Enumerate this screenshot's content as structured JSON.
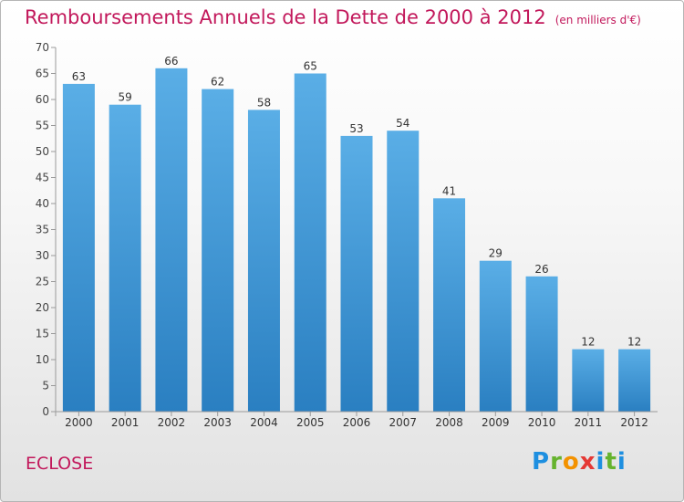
{
  "title": "Remboursements Annuels de la Dette de 2000 à 2012",
  "subtitle": "(en milliers d'€)",
  "commune": "ECLOSE",
  "logo": "Proxiti",
  "colors": {
    "bar": "#3f99d6",
    "title": "#c2185b"
  },
  "chart_data": {
    "type": "bar",
    "title": "Remboursements Annuels de la Dette de 2000 à 2012",
    "subtitle": "(en milliers d'€)",
    "categories": [
      "2000",
      "2001",
      "2002",
      "2003",
      "2004",
      "2005",
      "2006",
      "2007",
      "2008",
      "2009",
      "2010",
      "2011",
      "2012"
    ],
    "values": [
      63,
      59,
      66,
      62,
      58,
      65,
      53,
      54,
      41,
      29,
      26,
      12,
      12
    ],
    "xlabel": "",
    "ylabel": "",
    "ylim": [
      0,
      70
    ],
    "yticks": [
      0,
      5,
      10,
      15,
      20,
      25,
      30,
      35,
      40,
      45,
      50,
      55,
      60,
      65,
      70
    ],
    "grid": false,
    "legend": "none"
  }
}
